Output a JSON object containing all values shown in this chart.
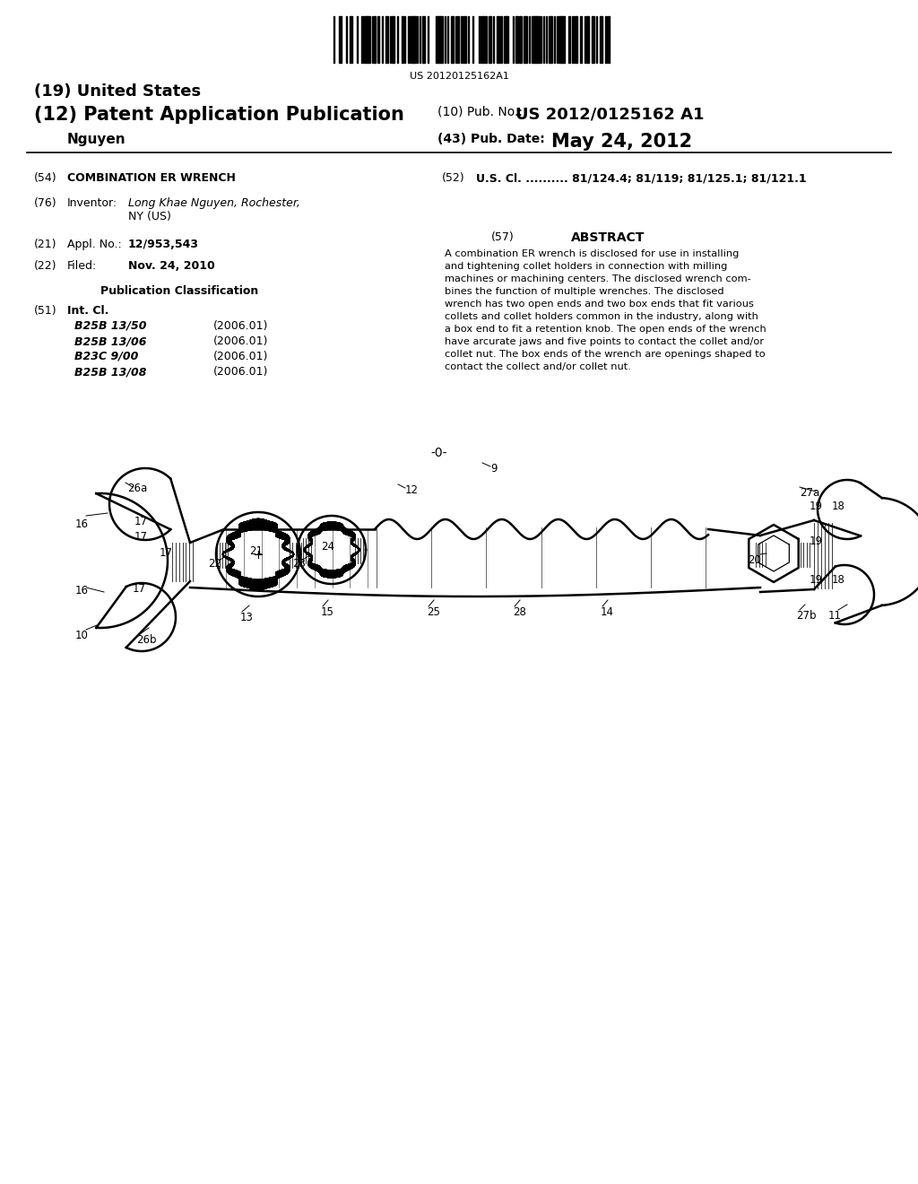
{
  "background_color": "#ffffff",
  "barcode_text": "US 20120125162A1",
  "patent_number": "US 2012/0125162 A1",
  "pub_date": "May 24, 2012",
  "title_19": "(19) United States",
  "title_12": "(12) Patent Application Publication",
  "pub_no_label": "(10) Pub. No.:",
  "pub_date_label": "(43) Pub. Date:",
  "inventor_name": "Nguyen",
  "section54_label": "(54)",
  "section54_text": "COMBINATION ER WRENCH",
  "section52_label": "(52)",
  "section52_text": "U.S. Cl. .......... 81/124.4; 81/119; 81/125.1; 81/121.1",
  "section76_label": "(76)",
  "section76_title": "Inventor:",
  "section76_name": "Long Khae Nguyen, Rochester,",
  "section76_loc": "NY (US)",
  "section57_label": "(57)",
  "section57_title": "ABSTRACT",
  "abstract_lines": [
    "A combination ER wrench is disclosed for use in installing",
    "and tightening collet holders in connection with milling",
    "machines or machining centers. The disclosed wrench com-",
    "bines the function of multiple wrenches. The disclosed",
    "wrench has two open ends and two box ends that fit various",
    "collets and collet holders common in the industry, along with",
    "a box end to fit a retention knob. The open ends of the wrench",
    "have arcurate jaws and five points to contact the collet and/or",
    "collet nut. The box ends of the wrench are openings shaped to",
    "contact the collect and/or collet nut."
  ],
  "section21_label": "(21)",
  "section21_title": "Appl. No.:",
  "section21_text": "12/953,543",
  "section22_label": "(22)",
  "section22_title": "Filed:",
  "section22_text": "Nov. 24, 2010",
  "pub_class_title": "Publication Classification",
  "section51_label": "(51)",
  "section51_title": "Int. Cl.",
  "classifications": [
    [
      "B25B 13/50",
      "(2006.01)"
    ],
    [
      "B25B 13/06",
      "(2006.01)"
    ],
    [
      "B23C 9/00",
      "(2006.01)"
    ],
    [
      "B25B 13/08",
      "(2006.01)"
    ]
  ],
  "fig_number": "-0-"
}
